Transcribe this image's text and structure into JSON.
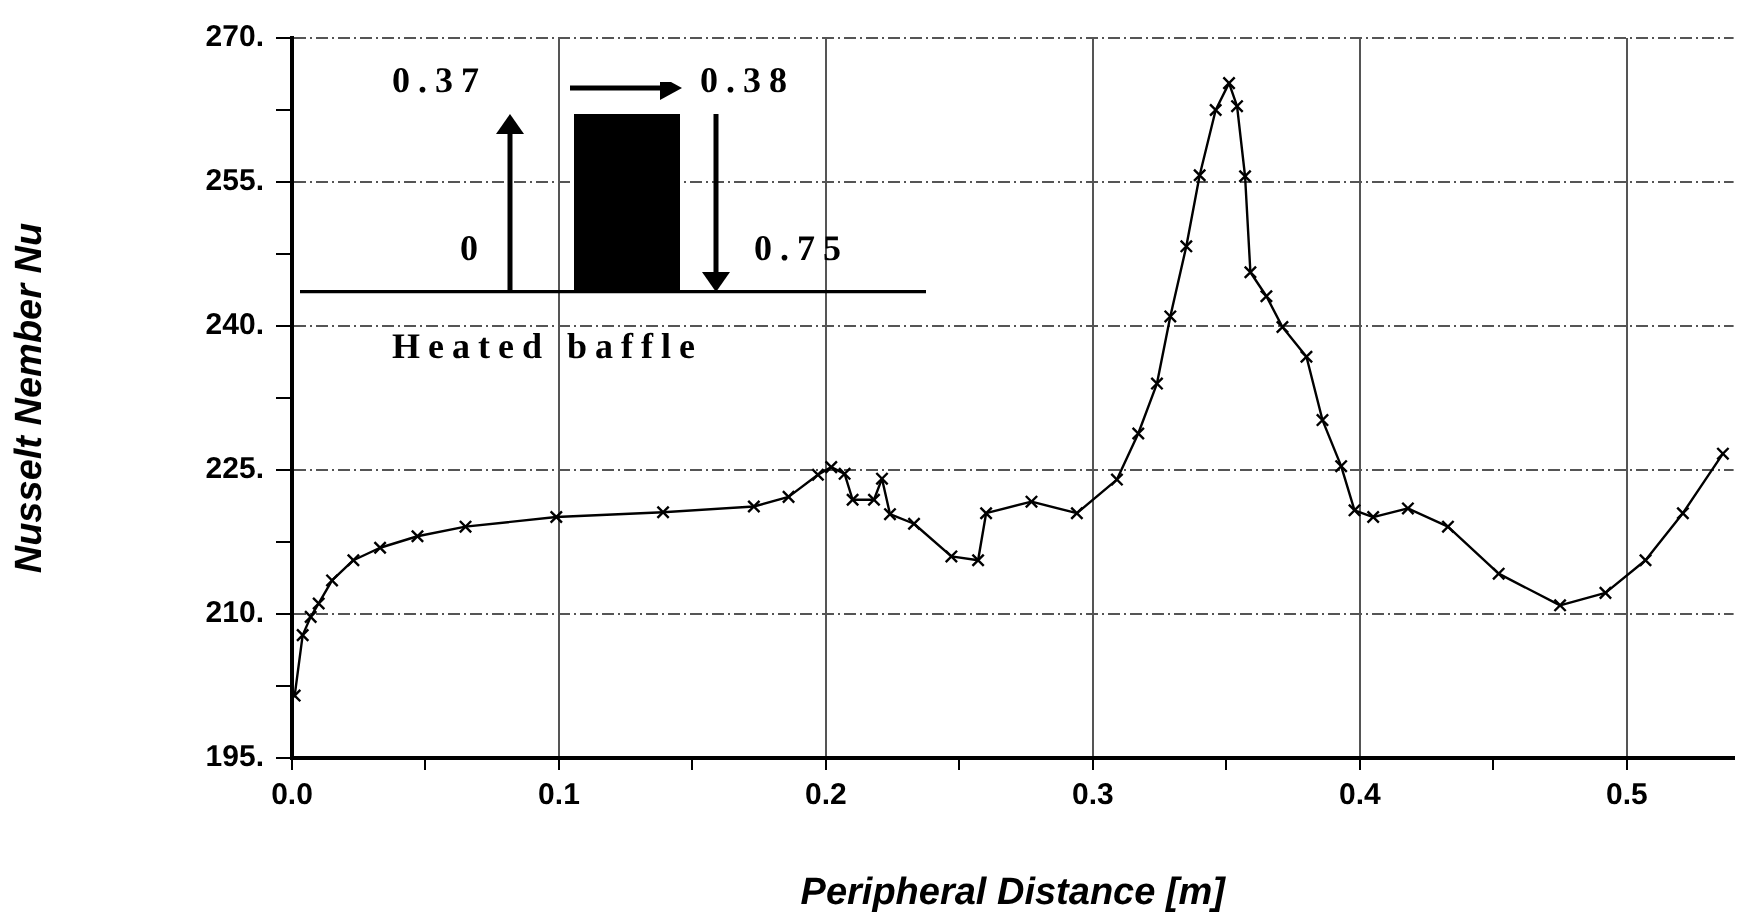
{
  "chart_data": {
    "type": "line",
    "xlabel": "Peripheral Distance [m]",
    "ylabel": "Nusselt Nember Nu",
    "annotations": [
      "0.37",
      "0.38",
      "0",
      "0.75",
      "Heated baffle"
    ],
    "series": [
      {
        "color": "#000000",
        "x": [
          0.001,
          0.004,
          0.007,
          0.01,
          0.015,
          0.023,
          0.033,
          0.047,
          0.065,
          0.099,
          0.139,
          0.173,
          0.186,
          0.197,
          0.202,
          0.207,
          0.21,
          0.218,
          0.221,
          0.224,
          0.233,
          0.247,
          0.257,
          0.26,
          0.277,
          0.294,
          0.309,
          0.317,
          0.324,
          0.329,
          0.335,
          0.34,
          0.346,
          0.351,
          0.354,
          0.357,
          0.359,
          0.365,
          0.371,
          0.38,
          0.386,
          0.393,
          0.398,
          0.405,
          0.418,
          0.433,
          0.452,
          0.475,
          0.492,
          0.507,
          0.521,
          0.536
        ],
        "values": [
          201.5,
          207.8,
          209.7,
          211.1,
          213.5,
          215.6,
          216.9,
          218.1,
          219.1,
          220.1,
          220.6,
          221.2,
          222.2,
          224.5,
          225.3,
          224.6,
          221.9,
          221.9,
          224.1,
          220.4,
          219.4,
          216,
          215.6,
          220.5,
          221.7,
          220.5,
          224,
          228.8,
          234,
          241,
          248.3,
          255.7,
          262.5,
          265.3,
          262.9,
          255.6,
          245.6,
          243.1,
          239.9,
          236.8,
          230.2,
          225.4,
          220.8,
          220.1,
          221,
          219.1,
          214.2,
          210.9,
          212.2,
          215.6,
          220.5,
          226.7
        ]
      }
    ],
    "xlim": [
      0,
      0.54
    ],
    "xticks": [
      {
        "value": 0,
        "label": "0.0"
      },
      {
        "value": 0.05,
        "label": null
      },
      0.1,
      {
        "value": 0.15,
        "label": null
      },
      0.2,
      {
        "value": 0.25,
        "label": null
      },
      0.3,
      {
        "value": 0.35,
        "label": null
      },
      0.4,
      {
        "value": 0.45,
        "label": null
      },
      0.5
    ],
    "ylim": [
      195,
      270
    ],
    "yticks": [
      {
        "value": 195,
        "label": "195."
      },
      {
        "value": 202.5,
        "label": null
      },
      {
        "value": 210,
        "label": "210."
      },
      {
        "value": 217.5,
        "label": null
      },
      {
        "value": 225,
        "label": "225."
      },
      {
        "value": 232.5,
        "label": null
      },
      {
        "value": 240,
        "label": "240."
      },
      {
        "value": 247.5,
        "label": null
      },
      {
        "value": 255,
        "label": "255."
      },
      {
        "value": 262.5,
        "label": null
      },
      {
        "value": 270,
        "label": "270."
      }
    ],
    "grid": true,
    "legend": false,
    "marker": "cross",
    "line_style": "solid"
  }
}
